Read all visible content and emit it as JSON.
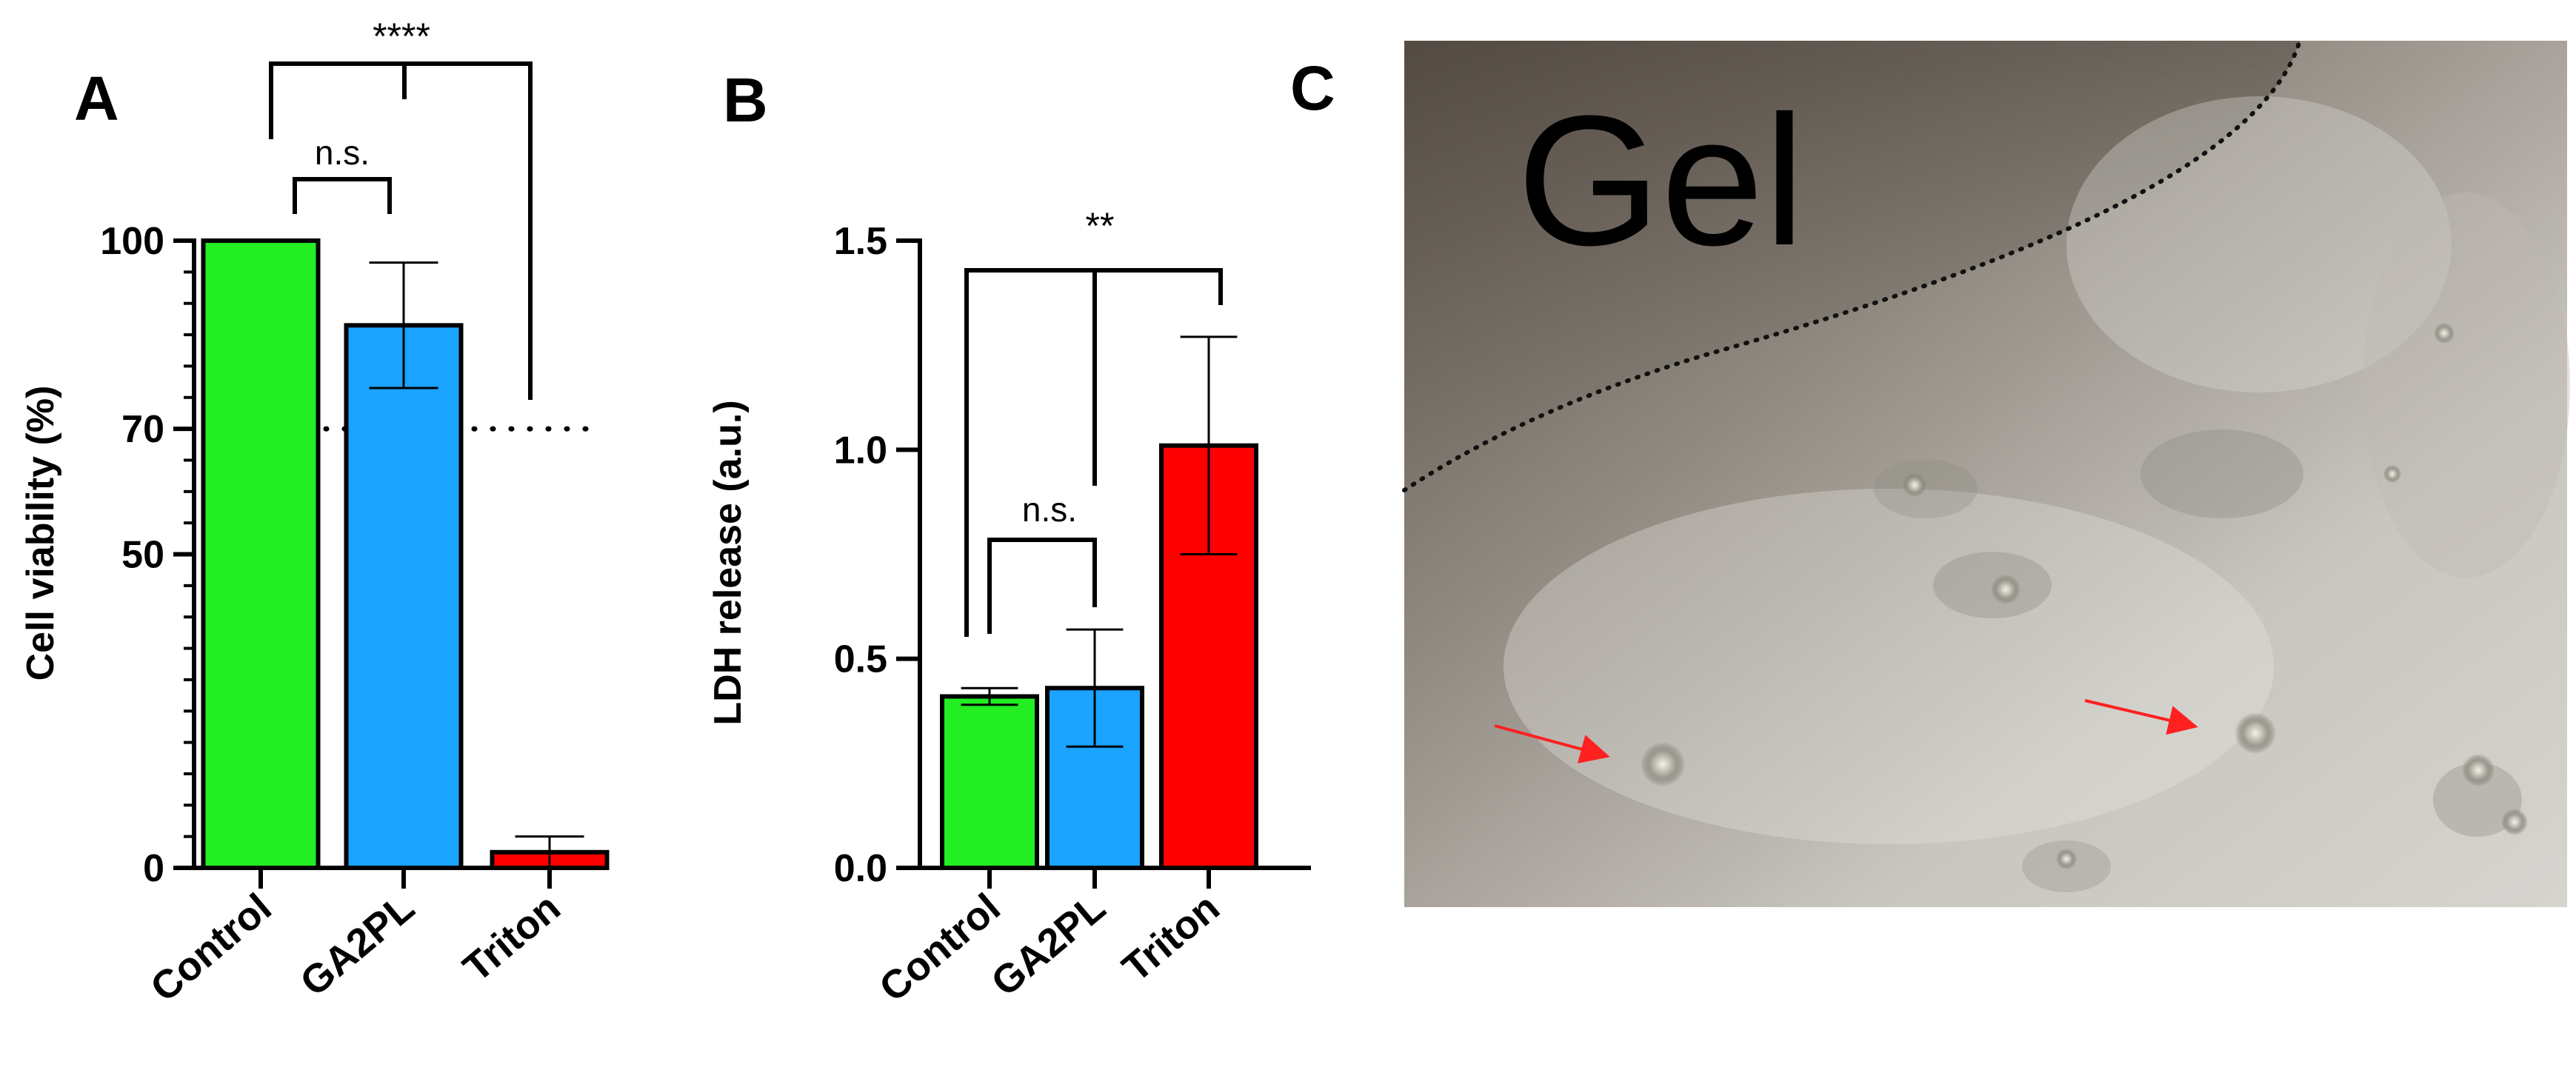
{
  "panels": {
    "a_label": "A",
    "b_label": "B",
    "c_label": "C"
  },
  "chart_data": [
    {
      "type": "bar",
      "panel": "A",
      "categories": [
        "Control",
        "GA2PL",
        "Triton"
      ],
      "series": [
        {
          "values": [
            100,
            86.5,
            2.5
          ],
          "errors": [
            0,
            10,
            2.5
          ]
        }
      ],
      "ylabel": "Cell viability (%)",
      "ylim": [
        0,
        100
      ],
      "yticks": [
        {
          "value": 0,
          "label": "0"
        },
        {
          "value": 50,
          "label": "50"
        },
        {
          "value": 70,
          "label": "70"
        },
        {
          "value": 100,
          "label": "100"
        }
      ],
      "reference_line": {
        "value": 70,
        "style": "dotted"
      },
      "bar_colors": [
        "#22ee22",
        "#1aa3ff",
        "#ff0000"
      ],
      "annotations": [
        {
          "text": "n.s.",
          "between": [
            "Control",
            "GA2PL"
          ]
        },
        {
          "text": "****",
          "between": [
            "Control+GA2PL",
            "Triton"
          ]
        }
      ]
    },
    {
      "type": "bar",
      "panel": "B",
      "categories": [
        "Control",
        "GA2PL",
        "Triton"
      ],
      "series": [
        {
          "values": [
            0.41,
            0.43,
            1.01
          ],
          "errors": [
            0.02,
            0.14,
            0.26
          ]
        }
      ],
      "ylabel": "LDH release (a.u.)",
      "ylim": [
        0,
        1.5
      ],
      "yticks": [
        {
          "value": 0,
          "label": "0.0"
        },
        {
          "value": 0.5,
          "label": "0.5"
        },
        {
          "value": 1.0,
          "label": "1.0"
        },
        {
          "value": 1.5,
          "label": "1.5"
        }
      ],
      "bar_colors": [
        "#22ee22",
        "#1aa3ff",
        "#ff0000"
      ],
      "annotations": [
        {
          "text": "n.s.",
          "between": [
            "Control",
            "GA2PL"
          ]
        },
        {
          "text": "**",
          "between": [
            "Control+GA2PL",
            "Triton"
          ]
        }
      ]
    }
  ],
  "micrograph": {
    "label": "Gel",
    "boundary_style": "dotted",
    "arrow_color": "#ff2020"
  }
}
